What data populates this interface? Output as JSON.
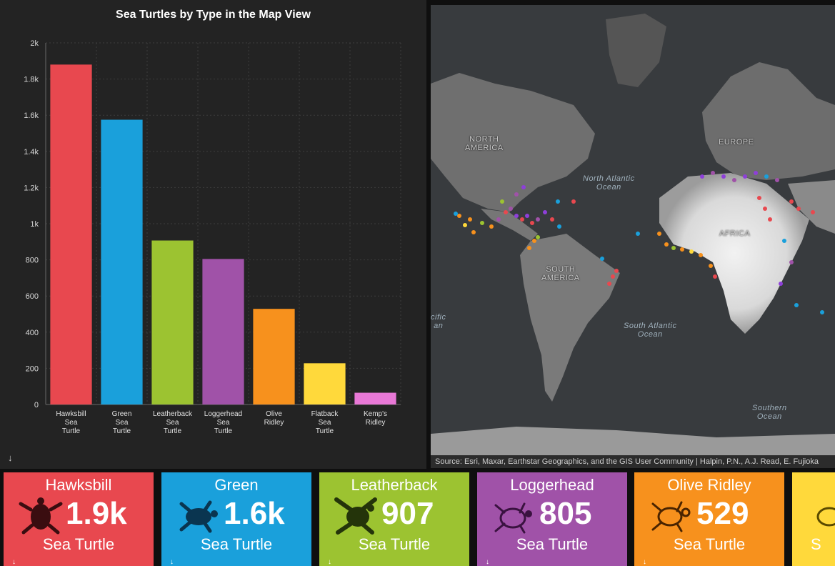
{
  "chart_panel": {
    "export_icon": "↓"
  },
  "chart_data": {
    "type": "bar",
    "title": "Sea Turtles by Type in the Map View",
    "categories": [
      [
        "Hawksbill",
        "Sea",
        "Turtle"
      ],
      [
        "Green",
        "Sea",
        "Turtle"
      ],
      [
        "Leatherback",
        "Sea",
        "Turtle"
      ],
      [
        "Loggerhead",
        "Sea",
        "Turtle"
      ],
      [
        "Olive",
        "Ridley"
      ],
      [
        "Flatback",
        "Sea",
        "Turtle"
      ],
      [
        "Kemp's",
        "Ridley"
      ]
    ],
    "values": [
      1880,
      1575,
      907,
      805,
      529,
      228,
      65
    ],
    "colors": [
      "#e8484f",
      "#1aa0db",
      "#9cc331",
      "#a052a8",
      "#f7911d",
      "#ffd93b",
      "#e878d6"
    ],
    "yticks": [
      "0",
      "200",
      "400",
      "600",
      "800",
      "1k",
      "1.2k",
      "1.4k",
      "1.6k",
      "1.8k",
      "2k"
    ],
    "ylim": [
      0,
      2000
    ],
    "grid": true
  },
  "map": {
    "attribution": "Source: Esri, Maxar, Earthstar Geographics, and the GIS User Community | Halpin, P.N., A.J. Read, E. Fujioka",
    "labels": {
      "north_america": "NORTH\nAMERICA",
      "europe": "EUROPE",
      "africa": "AFRICA",
      "south_america": "SOUTH\nAMERICA",
      "north_atlantic": "North Atlantic\nOcean",
      "south_atlantic": "South Atlantic\nOcean",
      "southern": "Southern\nOcean",
      "pacific_partial": "cific\nan"
    }
  },
  "cards": [
    {
      "title": "Hawksbill",
      "value": "1.9k",
      "sub": "Sea Turtle",
      "color": "#e8484f",
      "icon": "hawksbill-turtle-icon"
    },
    {
      "title": "Green",
      "value": "1.6k",
      "sub": "Sea Turtle",
      "color": "#1aa0db",
      "icon": "green-turtle-icon"
    },
    {
      "title": "Leatherback",
      "value": "907",
      "sub": "Sea Turtle",
      "color": "#9cc331",
      "icon": "leatherback-turtle-icon"
    },
    {
      "title": "Loggerhead",
      "value": "805",
      "sub": "Sea Turtle",
      "color": "#a052a8",
      "icon": "loggerhead-turtle-icon"
    },
    {
      "title": "Olive Ridley",
      "value": "529",
      "sub": "Sea Turtle",
      "color": "#f7911d",
      "icon": "olive-ridley-turtle-icon"
    },
    {
      "title": "",
      "value": "",
      "sub": "S",
      "color": "#ffd93b",
      "icon": "flatback-turtle-icon"
    }
  ],
  "card_export_icon": "↓"
}
